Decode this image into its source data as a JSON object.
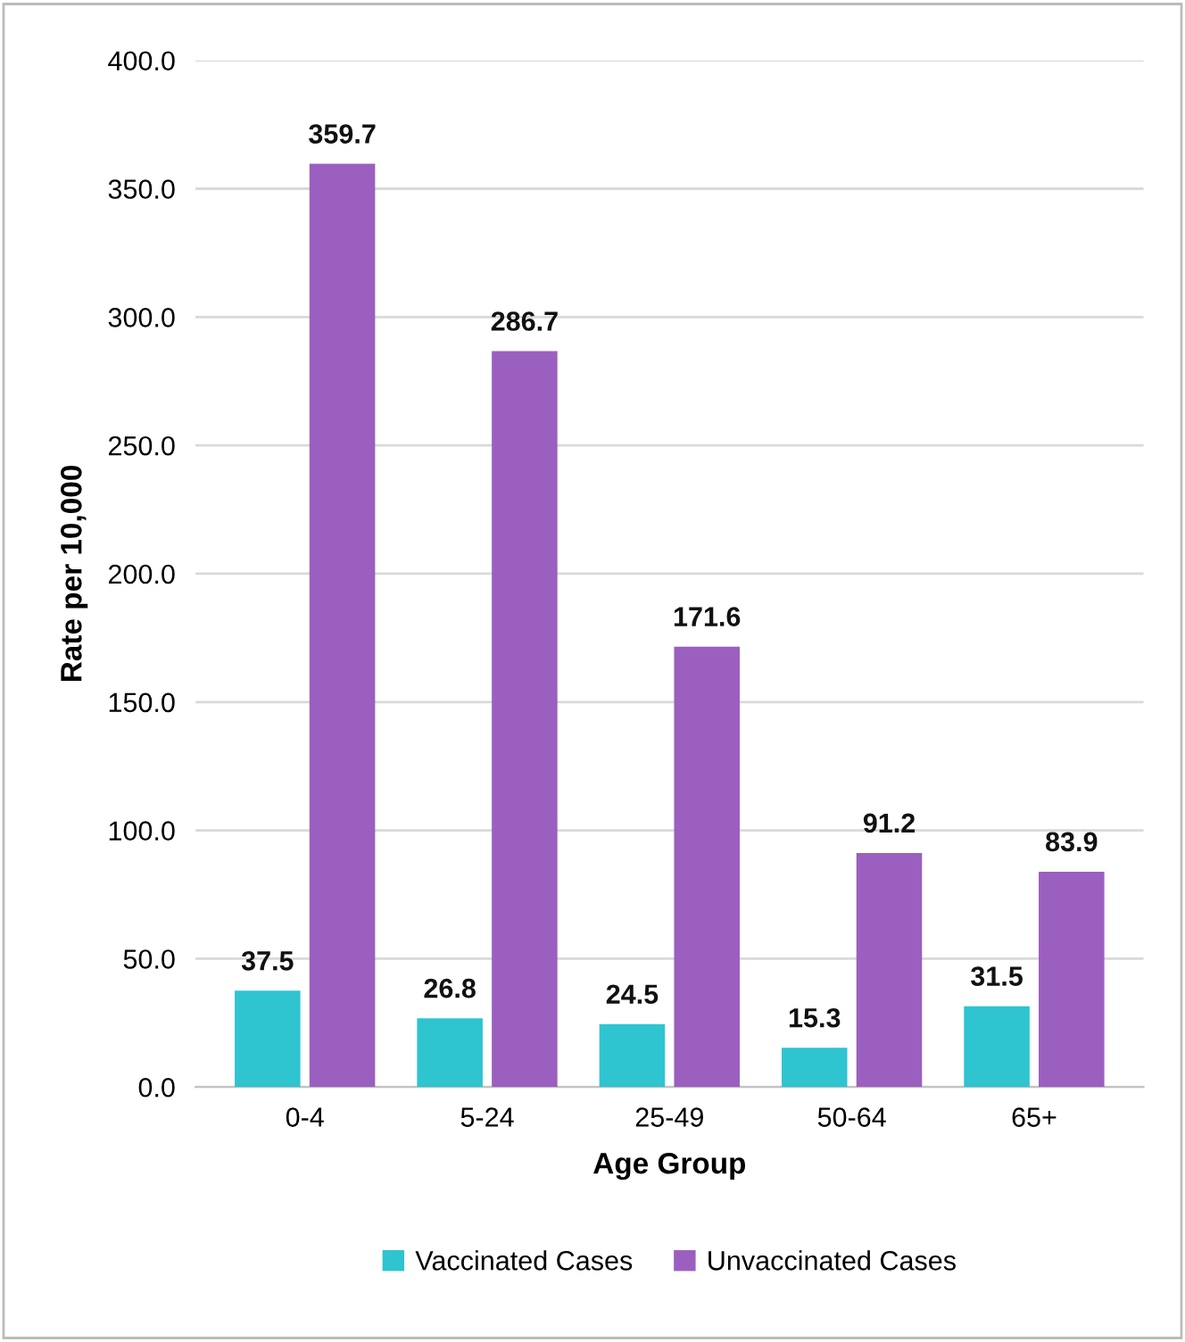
{
  "chart_data": {
    "type": "bar",
    "xlabel": "Age Group",
    "ylabel": "Rate per 10,000",
    "categories": [
      "0-4",
      "5-24",
      "25-49",
      "50-64",
      "65+"
    ],
    "series": [
      {
        "name": "Vaccinated Cases",
        "color": "#2ec4d0",
        "values": [
          37.5,
          26.8,
          24.5,
          15.3,
          31.5
        ]
      },
      {
        "name": "Unvaccinated Cases",
        "color": "#9b5fc0",
        "values": [
          359.7,
          286.7,
          171.6,
          91.2,
          83.9
        ]
      }
    ],
    "ylim": [
      0,
      400
    ],
    "yticks": [
      {
        "value": 0,
        "label": "0.0"
      },
      {
        "value": 50,
        "label": "50.0"
      },
      {
        "value": 100,
        "label": "100.0"
      },
      {
        "value": 150,
        "label": "150.0"
      },
      {
        "value": 200,
        "label": "200.0"
      },
      {
        "value": 250,
        "label": "250.0"
      },
      {
        "value": 300,
        "label": "300.0"
      },
      {
        "value": 350,
        "label": "350.0"
      },
      {
        "value": 400,
        "label": "400.0"
      }
    ],
    "grid": "y",
    "legend": "bottom",
    "data_labels": true
  }
}
